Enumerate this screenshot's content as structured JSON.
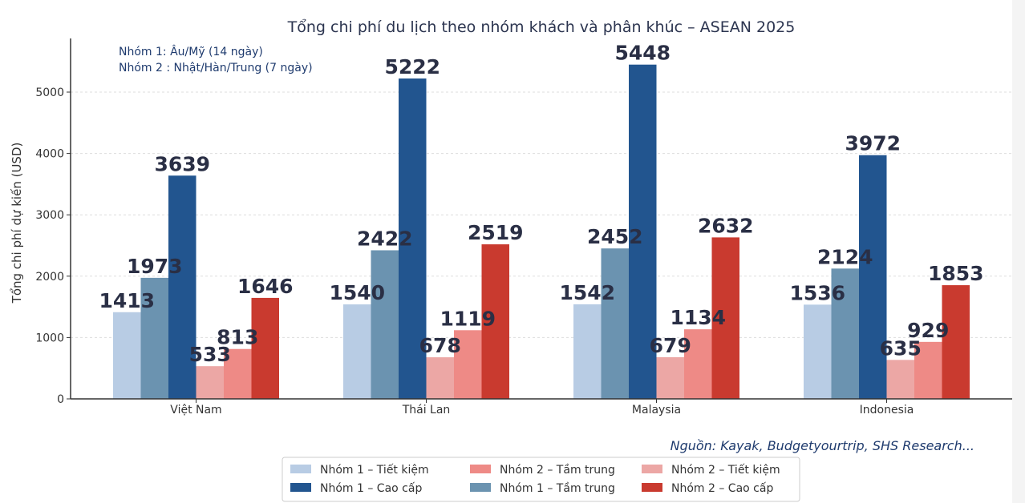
{
  "colors": {
    "n1_budget": "#b8cce4",
    "n1_mid": "#6b93b0",
    "n1_premium": "#22558f",
    "n2_budget": "#eca7a5",
    "n2_mid": "#ee8a86",
    "n2_premium": "#c93a2f"
  },
  "chart_data": {
    "type": "bar",
    "title": "Tổng chi phí du lịch theo nhóm khách và phân khúc – ASEAN 2025",
    "ylabel": "Tổng chi phí dự kiến (USD)",
    "xlabel": "",
    "ylim": [
      0,
      5800
    ],
    "yticks": [
      0,
      1000,
      2000,
      3000,
      4000,
      5000
    ],
    "grid": true,
    "legend_position": "bottom-center",
    "categories": [
      "Việt Nam",
      "Thái Lan",
      "Malaysia",
      "Indonesia"
    ],
    "series": [
      {
        "name": "Nhóm 1 – Tiết kiệm",
        "color_key": "n1_budget",
        "values": [
          1413,
          1540,
          1542,
          1536
        ]
      },
      {
        "name": "Nhóm 1 – Tầm trung",
        "color_key": "n1_mid",
        "values": [
          1973,
          2422,
          2452,
          2124
        ]
      },
      {
        "name": "Nhóm 1 – Cao cấp",
        "color_key": "n1_premium",
        "values": [
          3639,
          5222,
          5448,
          3972
        ]
      },
      {
        "name": "Nhóm 2 – Tiết kiệm",
        "color_key": "n2_budget",
        "values": [
          533,
          678,
          679,
          635
        ]
      },
      {
        "name": "Nhóm 2 – Tầm trung",
        "color_key": "n2_mid",
        "values": [
          813,
          1119,
          1134,
          929
        ]
      },
      {
        "name": "Nhóm 2 – Cao cấp",
        "color_key": "n2_premium",
        "values": [
          1646,
          2519,
          2632,
          1853
        ]
      }
    ],
    "legend_order": [
      0,
      2,
      4,
      1,
      3,
      5
    ],
    "annotations": [
      "Nhóm 1: Âu/Mỹ (14 ngày)",
      "Nhóm 2 : Nhật/Hàn/Trung (7 ngày)"
    ],
    "source": "Nguồn: Kayak, Budgetyourtrip, SHS Research..."
  }
}
